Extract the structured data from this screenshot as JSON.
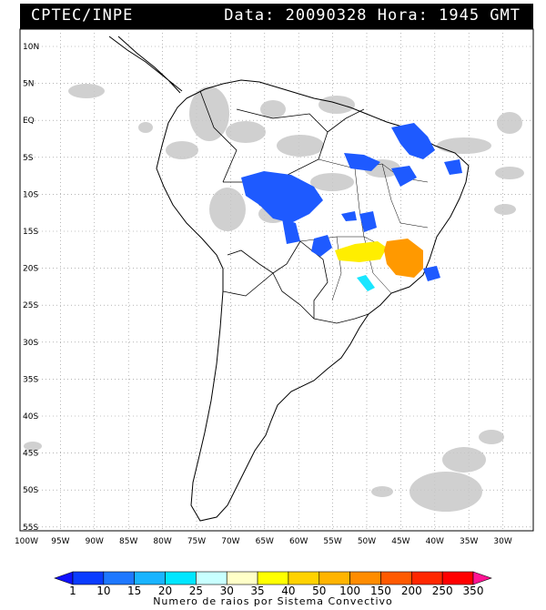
{
  "header": {
    "source": "CPTEC/INPE",
    "datetime": "Data: 20090328 Hora: 1945 GMT"
  },
  "axes": {
    "lat_labels": [
      "10N",
      "5N",
      "EQ",
      "5S",
      "10S",
      "15S",
      "20S",
      "25S",
      "30S",
      "35S",
      "40S",
      "45S",
      "50S",
      "55S"
    ],
    "lon_labels": [
      "100W",
      "95W",
      "90W",
      "85W",
      "80W",
      "75W",
      "70W",
      "65W",
      "60W",
      "55W",
      "50W",
      "45W",
      "40W",
      "35W",
      "30W"
    ]
  },
  "legend": {
    "title": "Numero de raios por Sistema Convectivo",
    "ticks": [
      "1",
      "10",
      "15",
      "20",
      "25",
      "30",
      "35",
      "40",
      "50",
      "100",
      "150",
      "200",
      "250",
      "350"
    ],
    "colors": [
      "#1010ff",
      "#0a3cff",
      "#1e78ff",
      "#19b4ff",
      "#00e6ff",
      "#c8ffff",
      "#ffffc8",
      "#ffff00",
      "#ffd200",
      "#ffb400",
      "#ff8c00",
      "#ff5a00",
      "#ff2800",
      "#ff0000",
      "#ff1493"
    ]
  },
  "map_features": {
    "cloud_color": "#c8c8c8",
    "coast_color": "#000000",
    "storm_colors": [
      "#1e5aff",
      "#ffee00",
      "#ff9900",
      "#19e6ff"
    ]
  }
}
